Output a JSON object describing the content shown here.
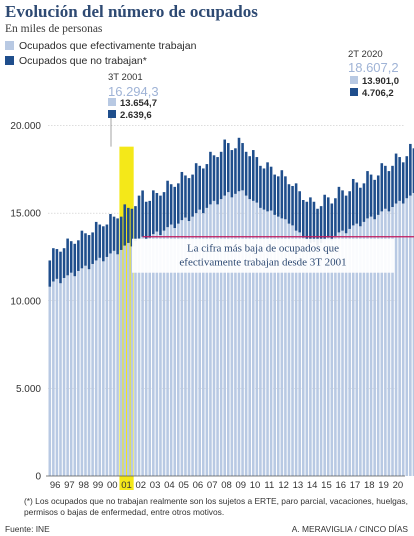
{
  "header": {
    "title": "Evolución del número de ocupados",
    "subtitle": "En miles de personas"
  },
  "legend": [
    {
      "label": "Ocupados que efectivamente trabajan",
      "color": "#b8c9e3"
    },
    {
      "label": "Ocupados que no trabajan*",
      "color": "#1f4e8c"
    }
  ],
  "footnote": "(*) Los ocupados que no trabajan realmente son los sujetos a ERTE, paro parcial, vacaciones, huelgas, permisos o bajas de enfermedad, entre otros motivos.",
  "source": "Fuente: INE",
  "credit": "A. MERAVIGLIA / CINCO DÍAS",
  "chart_data": {
    "type": "bar",
    "stacked": true,
    "colors": {
      "working": "#b8c9e3",
      "not_working": "#1f4e8c",
      "highlight": "#f3e600",
      "reference_line": "#c2185b"
    },
    "ylim": [
      0,
      21000
    ],
    "yticks": [
      0,
      5000,
      10000,
      15000,
      20000
    ],
    "ytick_labels": [
      "0",
      "5.000",
      "10.000",
      "15.000",
      "20.000"
    ],
    "year_labels": [
      "96",
      "97",
      "98",
      "99",
      "00",
      "01",
      "02",
      "03",
      "04",
      "05",
      "06",
      "07",
      "08",
      "09",
      "10",
      "11",
      "12",
      "13",
      "14",
      "15",
      "16",
      "17",
      "18",
      "19",
      "20"
    ],
    "highlighted_year": "01",
    "series": [
      {
        "name": "Ocupados que efectivamente trabajan",
        "values": [
          10800,
          11100,
          11250,
          11000,
          11300,
          11450,
          11600,
          11400,
          11700,
          11850,
          12000,
          11800,
          12100,
          12300,
          12450,
          12250,
          12500,
          12700,
          12850,
          12650,
          12900,
          13150,
          13300,
          13100,
          13400,
          13550,
          13654.7,
          13500,
          13600,
          13800,
          13950,
          13750,
          14000,
          14200,
          14350,
          14150,
          14400,
          14600,
          14750,
          14550,
          14800,
          15000,
          15200,
          15000,
          15300,
          15500,
          15700,
          15500,
          15800,
          16000,
          16200,
          15900,
          16100,
          16250,
          16300,
          16000,
          15800,
          15700,
          15600,
          15300,
          15200,
          15100,
          15150,
          14900,
          14800,
          14700,
          14650,
          14400,
          14300,
          14000,
          13900,
          13600,
          13500,
          13300,
          13350,
          13150,
          13300,
          13500,
          13600,
          13450,
          13700,
          13900,
          14000,
          13850,
          14100,
          14300,
          14400,
          14250,
          14500,
          14700,
          14800,
          14650,
          14900,
          15100,
          15250,
          15100,
          15350,
          15550,
          15700,
          15550,
          15850,
          16000,
          16150,
          16000,
          15450,
          13901.0
        ]
      },
      {
        "name": "Ocupados que no trabajan*",
        "values": [
          1500,
          1900,
          1700,
          1800,
          1700,
          2100,
          1800,
          1850,
          1750,
          2150,
          1850,
          1950,
          1800,
          2200,
          1900,
          2000,
          1850,
          2250,
          1950,
          2050,
          1900,
          2350,
          2000,
          2150,
          2000,
          2450,
          2639.6,
          2150,
          2100,
          2500,
          2200,
          2250,
          2200,
          2650,
          2300,
          2350,
          2300,
          2750,
          2400,
          2450,
          2400,
          2850,
          2500,
          2550,
          2500,
          3000,
          2600,
          2700,
          2700,
          3200,
          2800,
          2700,
          2600,
          3050,
          2700,
          2500,
          2450,
          2900,
          2600,
          2400,
          2350,
          2800,
          2500,
          2300,
          2300,
          2750,
          2450,
          2250,
          2250,
          2700,
          2350,
          2150,
          2150,
          2600,
          2300,
          2100,
          2100,
          2550,
          2300,
          2100,
          2150,
          2600,
          2300,
          2150,
          2150,
          2650,
          2350,
          2200,
          2200,
          2700,
          2400,
          2250,
          2250,
          2750,
          2450,
          2300,
          2350,
          2850,
          2500,
          2350,
          2400,
          2950,
          2550,
          2450,
          2950,
          4706.2
        ]
      }
    ],
    "annotations": {
      "q3_2001": {
        "period": "3T 2001",
        "total": "16.294,3",
        "working": "13.654,7",
        "not_working": "2.639,6"
      },
      "q2_2020": {
        "period": "2T 2020",
        "total": "18.607,2",
        "working": "13.901,0",
        "not_working": "4.706,2"
      },
      "callout": "La cifra más baja de ocupados que efectivamente trabajan desde 3T 2001"
    }
  }
}
